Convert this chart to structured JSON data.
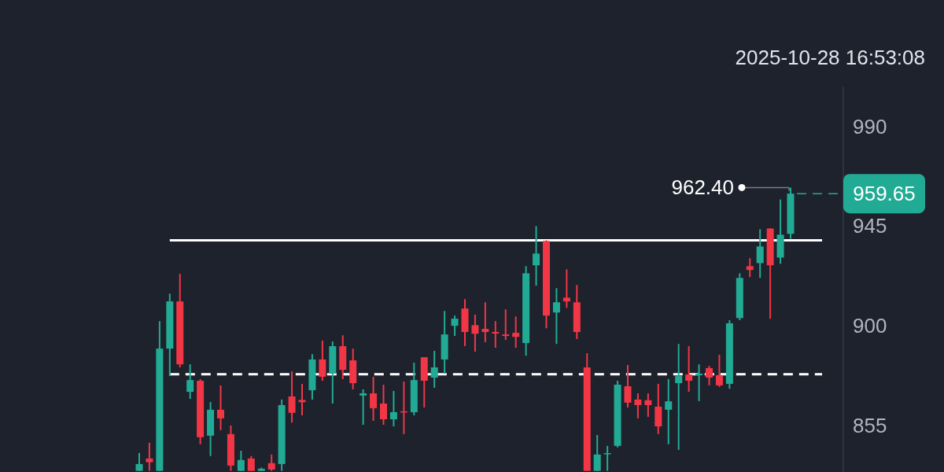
{
  "chart_data": {
    "type": "candlestick",
    "categories": [
      null,
      null,
      null,
      null,
      null,
      null,
      null,
      null,
      null,
      null,
      null,
      null,
      null,
      null,
      null,
      null,
      null,
      null,
      null,
      null,
      null,
      null,
      null,
      null,
      null,
      null,
      null,
      null,
      null,
      null,
      null,
      null,
      null,
      null,
      null,
      null,
      null,
      null,
      null,
      null,
      null,
      null,
      null,
      null,
      null,
      null,
      null,
      null,
      null,
      null,
      null,
      null,
      null,
      null,
      null,
      null,
      null,
      null,
      null,
      null,
      null,
      null,
      null,
      null,
      null
    ],
    "ohlc": [
      [
        834.5,
        842.6,
        834.5,
        837.6
      ],
      [
        840.1,
        847.2,
        834.5,
        838.4
      ],
      [
        834.5,
        902.1,
        834.5,
        889.7
      ],
      [
        889.7,
        914.5,
        877.3,
        911.0
      ],
      [
        911.0,
        923.4,
        881.2,
        882.6
      ],
      [
        870.2,
        882.6,
        867.0,
        875.5
      ],
      [
        875.2,
        875.9,
        846.5,
        849.7
      ],
      [
        850.4,
        865.6,
        841.2,
        862.1
      ],
      [
        862.1,
        873.1,
        852.9,
        858.2
      ],
      [
        851.1,
        855.0,
        834.5,
        836.9
      ],
      [
        834.5,
        843.6,
        834.5,
        839.4
      ],
      [
        840.1,
        841.2,
        834.5,
        834.5
      ],
      [
        834.5,
        836,
        834.5,
        835.5
      ],
      [
        838,
        841.9,
        834.5,
        835.1
      ],
      [
        837.6,
        866.7,
        834.5,
        864.2
      ],
      [
        868.1,
        879.5,
        856.3,
        860.7
      ],
      [
        866.5,
        873.8,
        859.6,
        865.5
      ],
      [
        870.9,
        887.2,
        866.7,
        884.8
      ],
      [
        884.8,
        893.3,
        875.2,
        877.0
      ],
      [
        878.4,
        892.9,
        864.9,
        890.8
      ],
      [
        890.8,
        895.7,
        875.9,
        880.1
      ],
      [
        884.4,
        889.7,
        871.3,
        874.1
      ],
      [
        868.5,
        871.3,
        855.3,
        869.5
      ],
      [
        869.5,
        877.0,
        857.1,
        862.8
      ],
      [
        864.9,
        873.4,
        855.3,
        857.8
      ],
      [
        857.8,
        870.6,
        854.6,
        861.0
      ],
      [
        861.4,
        874.8,
        851.1,
        861.0
      ],
      [
        861.0,
        883.3,
        859.6,
        875.5
      ],
      [
        885.8,
        885.8,
        863.1,
        875.2
      ],
      [
        876.6,
        888.7,
        872.0,
        881.2
      ],
      [
        884.8,
        906.7,
        878.4,
        896.1
      ],
      [
        900.0,
        904.6,
        895.4,
        903.2
      ],
      [
        907.8,
        912.0,
        890.8,
        897.2
      ],
      [
        900.3,
        905.0,
        888.3,
        896.4
      ],
      [
        898.6,
        910.6,
        892.6,
        897.2
      ],
      [
        897.2,
        902.1,
        890.1,
        896.5
      ],
      [
        896.1,
        907.4,
        893.6,
        895.4
      ],
      [
        896.8,
        904.2,
        890.1,
        895.0
      ],
      [
        892.2,
        926.9,
        886.5,
        923.7
      ],
      [
        927.3,
        945.0,
        918.1,
        932.6
      ],
      [
        938.3,
        938.6,
        898.9,
        904.6
      ],
      [
        906.0,
        917.0,
        891.8,
        910.6
      ],
      [
        912.7,
        925.5,
        908.1,
        911.0
      ],
      [
        910.6,
        918.4,
        894.0,
        897.2
      ],
      [
        881.2,
        887.6,
        834.5,
        834.5
      ],
      [
        834.5,
        850.7,
        834.5,
        841.9
      ],
      [
        842.2,
        845.8,
        834.5,
        842.5
      ],
      [
        845.8,
        875.2,
        845.1,
        873.4
      ],
      [
        872.7,
        882.3,
        863.1,
        865.3
      ],
      [
        866.7,
        869.5,
        858.2,
        864.2
      ],
      [
        866.4,
        869.5,
        858.9,
        864.2
      ],
      [
        863.5,
        873.8,
        851.1,
        854.6
      ],
      [
        862.1,
        875.9,
        846.5,
        865.9
      ],
      [
        874.1,
        891.8,
        844.0,
        877.3
      ],
      [
        878.0,
        890.8,
        870.2,
        875.2
      ],
      [
        877.7,
        882.6,
        866.0,
        878.4
      ],
      [
        880.9,
        881.9,
        873.1,
        876.6
      ],
      [
        877.7,
        886.9,
        872.4,
        873.1
      ],
      [
        873.8,
        902.5,
        871.6,
        901.1
      ],
      [
        903.5,
        923.7,
        902.5,
        921.6
      ],
      [
        926.9,
        930.5,
        922.0,
        925.2
      ],
      [
        928.3,
        943.6,
        921.6,
        935.8
      ],
      [
        943.9,
        944.0,
        903.2,
        927.3
      ],
      [
        930.8,
        957.0,
        928.0,
        941.1
      ],
      [
        941.5,
        962.4,
        939.3,
        959.65
      ]
    ],
    "colors": [
      "#22ab94",
      "#f23645",
      "#22ab94",
      "#22ab94",
      "#f23645",
      "#22ab94",
      "#f23645",
      "#22ab94",
      "#f23645",
      "#f23645",
      "#22ab94",
      "#f23645",
      "#22ab94",
      "#f23645",
      "#22ab94",
      "#f23645",
      "#f23645",
      "#22ab94",
      "#f23645",
      "#22ab94",
      "#f23645",
      "#f23645",
      "#22ab94",
      "#f23645",
      "#f23645",
      "#22ab94",
      "#f23645",
      "#22ab94",
      "#f23645",
      "#22ab94",
      "#22ab94",
      "#22ab94",
      "#f23645",
      "#f23645",
      "#f23645",
      "#f23645",
      "#f23645",
      "#f23645",
      "#22ab94",
      "#22ab94",
      "#f23645",
      "#22ab94",
      "#f23645",
      "#f23645",
      "#f23645",
      "#22ab94",
      "#22ab94",
      "#22ab94",
      "#f23645",
      "#f23645",
      "#f23645",
      "#f23645",
      "#22ab94",
      "#22ab94",
      "#f23645",
      "#22ab94",
      "#f23645",
      "#f23645",
      "#22ab94",
      "#22ab94",
      "#f23645",
      "#22ab94",
      "#f23645",
      "#22ab94",
      "#22ab94"
    ],
    "ylim": [
      834,
      1008
    ],
    "yticks": [
      855,
      900,
      945,
      990
    ],
    "tick_labels": "y",
    "ref_lines": [
      {
        "axis": "y",
        "value": 938.6,
        "color": "#ffffff",
        "line_style": "solid"
      },
      {
        "axis": "y",
        "value": 878.1,
        "color": "#ffffff",
        "line_style": "dashed"
      },
      {
        "axis": "y",
        "value": 959.65,
        "label": "959.65",
        "color": "#22ab94",
        "line_style": "dashed"
      }
    ],
    "annotations": [
      "2025-10-28 16:53:08",
      "962.40"
    ]
  }
}
